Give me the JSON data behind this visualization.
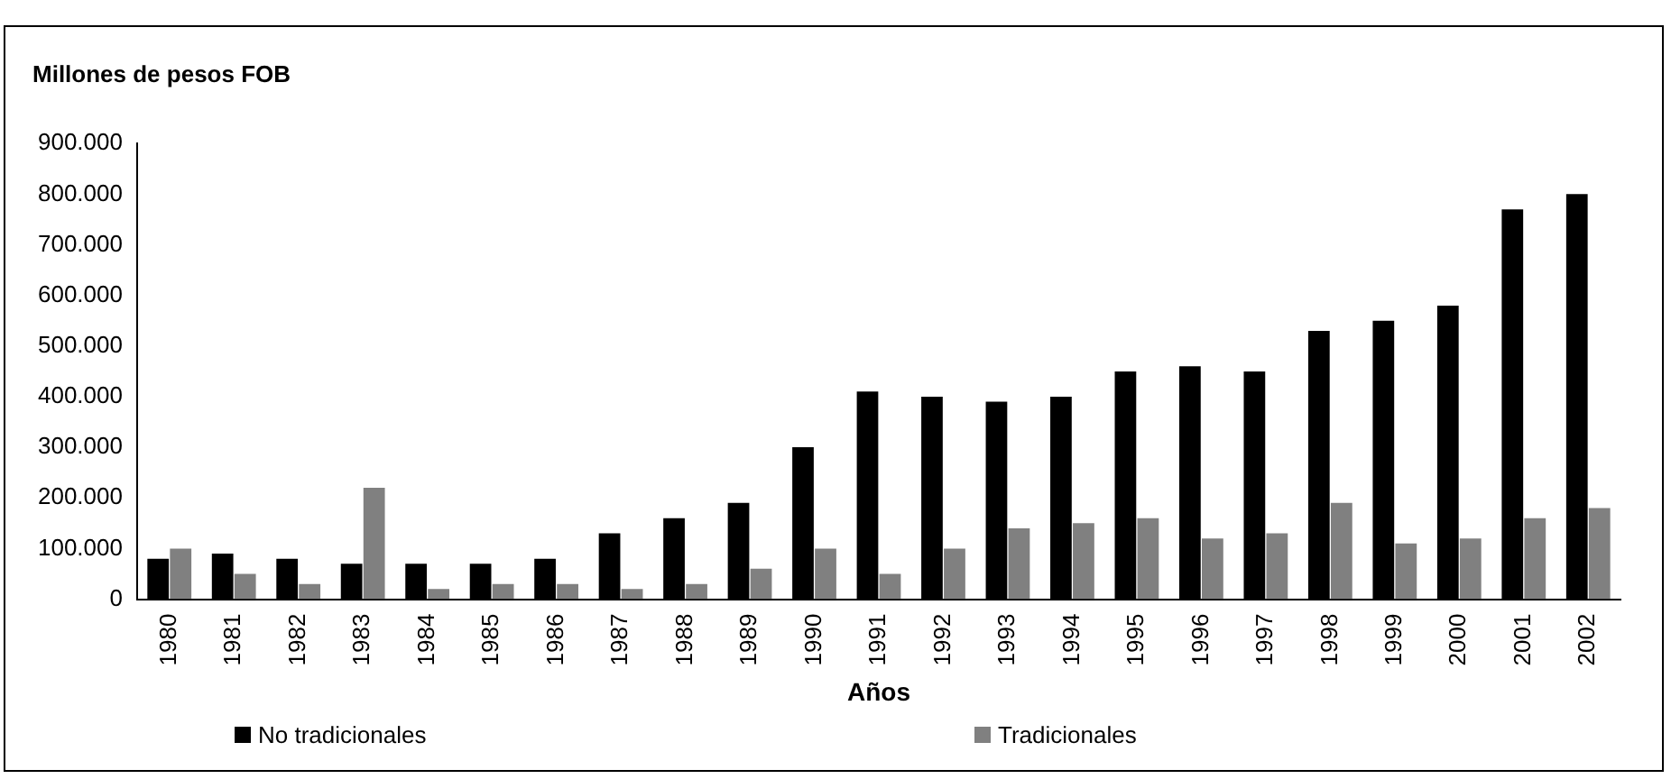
{
  "chart_data": {
    "type": "bar",
    "title": "Millones de pesos FOB",
    "xlabel": "Años",
    "categories": [
      "1980",
      "1981",
      "1982",
      "1983",
      "1984",
      "1985",
      "1986",
      "1987",
      "1988",
      "1989",
      "1990",
      "1991",
      "1992",
      "1993",
      "1994",
      "1995",
      "1996",
      "1997",
      "1998",
      "1999",
      "2000",
      "2001",
      "2002"
    ],
    "series": [
      {
        "name": "No tradicionales",
        "color": "#000000",
        "values": [
          80000,
          90000,
          80000,
          70000,
          70000,
          70000,
          80000,
          130000,
          160000,
          190000,
          300000,
          410000,
          400000,
          390000,
          400000,
          450000,
          460000,
          450000,
          530000,
          550000,
          580000,
          770000,
          800000
        ]
      },
      {
        "name": "Tradicionales",
        "color": "#808080",
        "values": [
          100000,
          50000,
          30000,
          220000,
          20000,
          30000,
          30000,
          20000,
          30000,
          60000,
          100000,
          50000,
          100000,
          140000,
          150000,
          160000,
          120000,
          130000,
          190000,
          110000,
          120000,
          160000,
          180000
        ]
      }
    ],
    "ylim": [
      0,
      900000
    ],
    "yticks": [
      {
        "value": 0,
        "label": "0"
      },
      {
        "value": 100000,
        "label": "100.000"
      },
      {
        "value": 200000,
        "label": "200.000"
      },
      {
        "value": 300000,
        "label": "300.000"
      },
      {
        "value": 400000,
        "label": "400.000"
      },
      {
        "value": 500000,
        "label": "500.000"
      },
      {
        "value": 600000,
        "label": "600.000"
      },
      {
        "value": 700000,
        "label": "700.000"
      },
      {
        "value": 800000,
        "label": "800.000"
      },
      {
        "value": 900000,
        "label": "900.000"
      }
    ],
    "grid": false,
    "legend": "bottom"
  }
}
